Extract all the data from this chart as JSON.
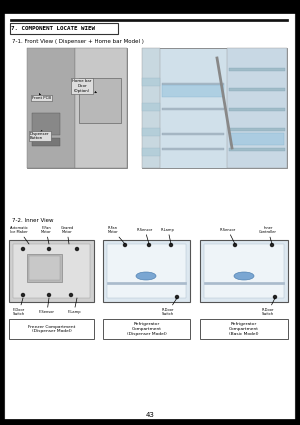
{
  "page_number": "43",
  "bg_color": "#ffffff",
  "top_bar_color": "#000000",
  "header_box_text": "7. COMPONENT LOCATE WIEW",
  "section1_title": "7-1. Front View ( Dispenser + Home bar Model )",
  "section2_title": "7-2. Inner View",
  "caption_left": "Freezer Compartment\n(Dispenser Model)",
  "caption_mid": "Refrigerator\nCompartment\n(Dispenser Model)",
  "caption_right": "Refrigerator\nCompartment\n(Basic Model)",
  "page_bg": "#f5f5f5",
  "label_fs": 2.6
}
